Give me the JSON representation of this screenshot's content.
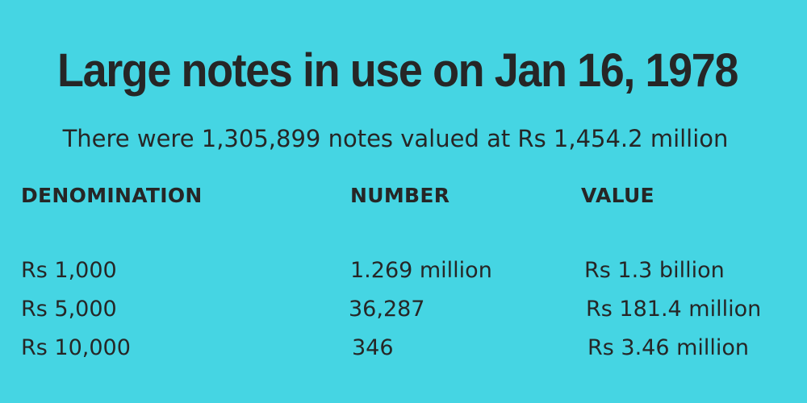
{
  "chart_data": {
    "type": "table",
    "title": "Large notes in use on Jan 16, 1978",
    "subtitle": "There were 1,305,899 notes valued at Rs 1,454.2 million",
    "columns": [
      "DENOMINATION",
      "NUMBER",
      "VALUE"
    ],
    "rows": [
      [
        "Rs 1,000",
        "1.269 million",
        "Rs 1.3 billion"
      ],
      [
        "Rs 5,000",
        "36,287",
        "Rs 181.4 million"
      ],
      [
        "Rs 10,000",
        "346",
        "Rs 3.46 million"
      ]
    ]
  },
  "colors": {
    "background": "#45d5e3",
    "text": "#262626"
  }
}
